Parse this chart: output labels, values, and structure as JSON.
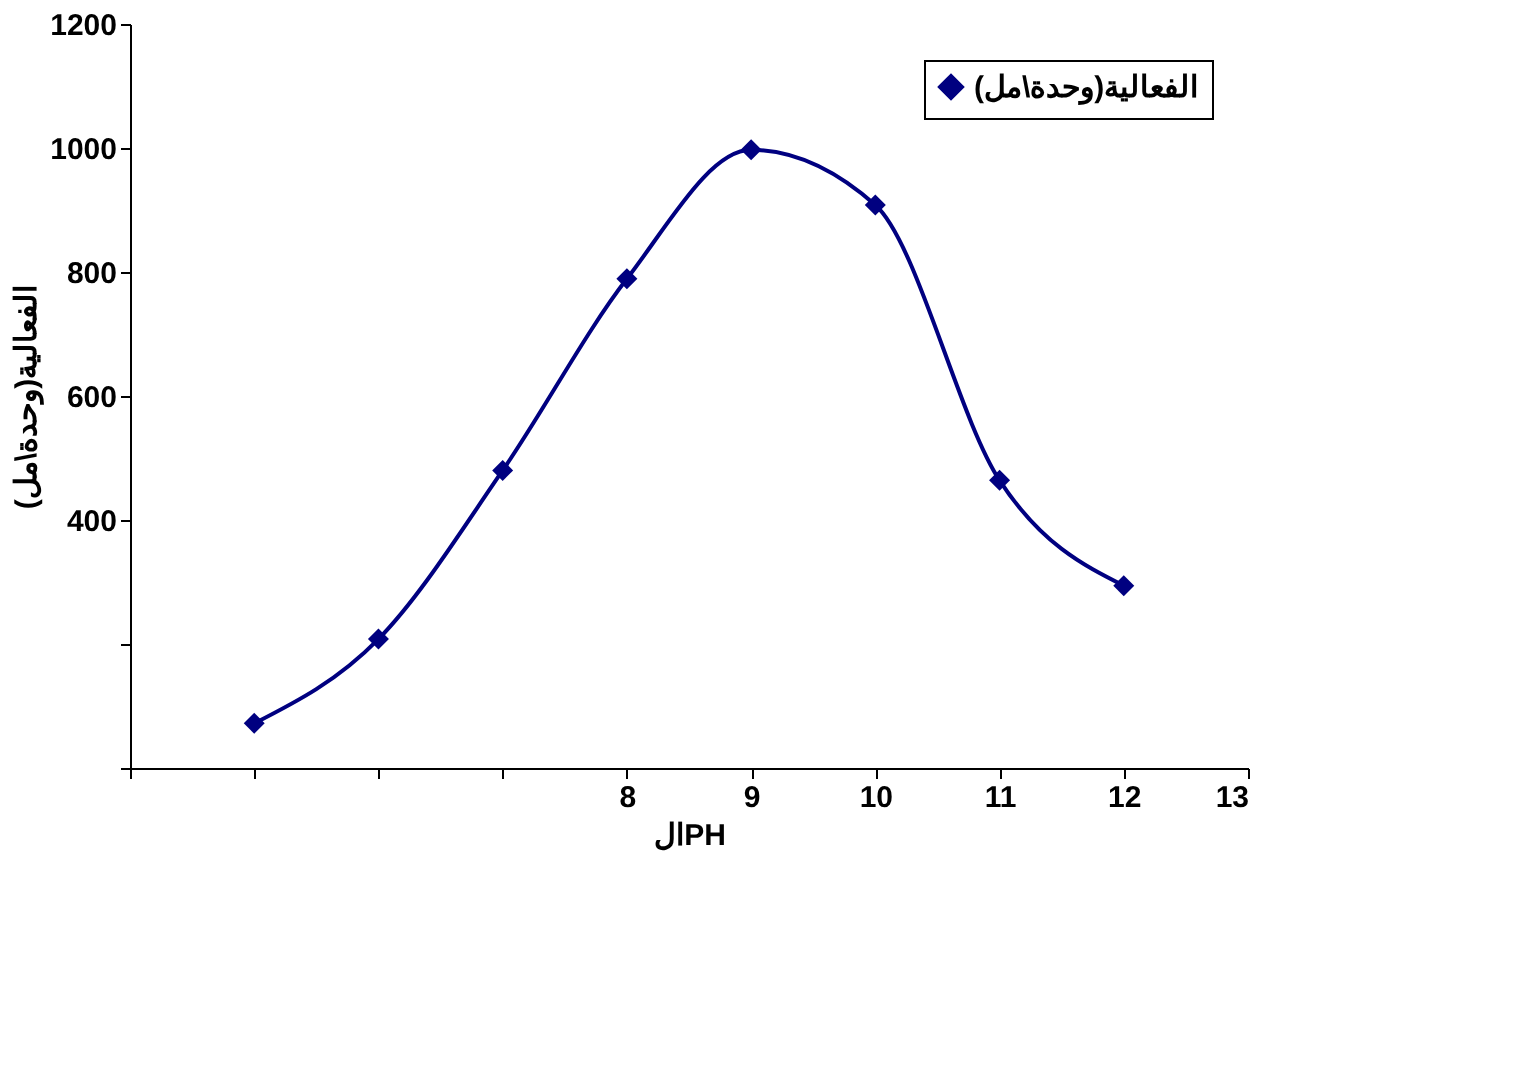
{
  "chart_data": {
    "type": "line",
    "xlabel": "الPH",
    "ylabel": "الفعالية(وحدة\\مل)",
    "x": [
      5,
      6,
      7,
      8,
      9,
      10,
      11,
      12
    ],
    "series": [
      {
        "name": "الفعالية(وحدة\\مل)",
        "color": "#000080",
        "values": [
          72,
          208,
          480,
          789,
          997,
          908,
          464,
          294
        ]
      }
    ],
    "xlim": [
      4,
      13
    ],
    "xticks": [
      {
        "value": 4,
        "label": null
      },
      {
        "value": 5,
        "label": null
      },
      {
        "value": 6,
        "label": null
      },
      {
        "value": 7,
        "label": null
      },
      8,
      9,
      10,
      11,
      12,
      13
    ],
    "ylim": [
      0,
      1200
    ],
    "yticks": [
      {
        "value": 0,
        "label": null
      },
      {
        "value": 200,
        "label": null
      },
      400,
      600,
      800,
      1000,
      1200
    ],
    "grid": false,
    "legend": "top right",
    "marker": "diamond",
    "line_style": "solid"
  }
}
